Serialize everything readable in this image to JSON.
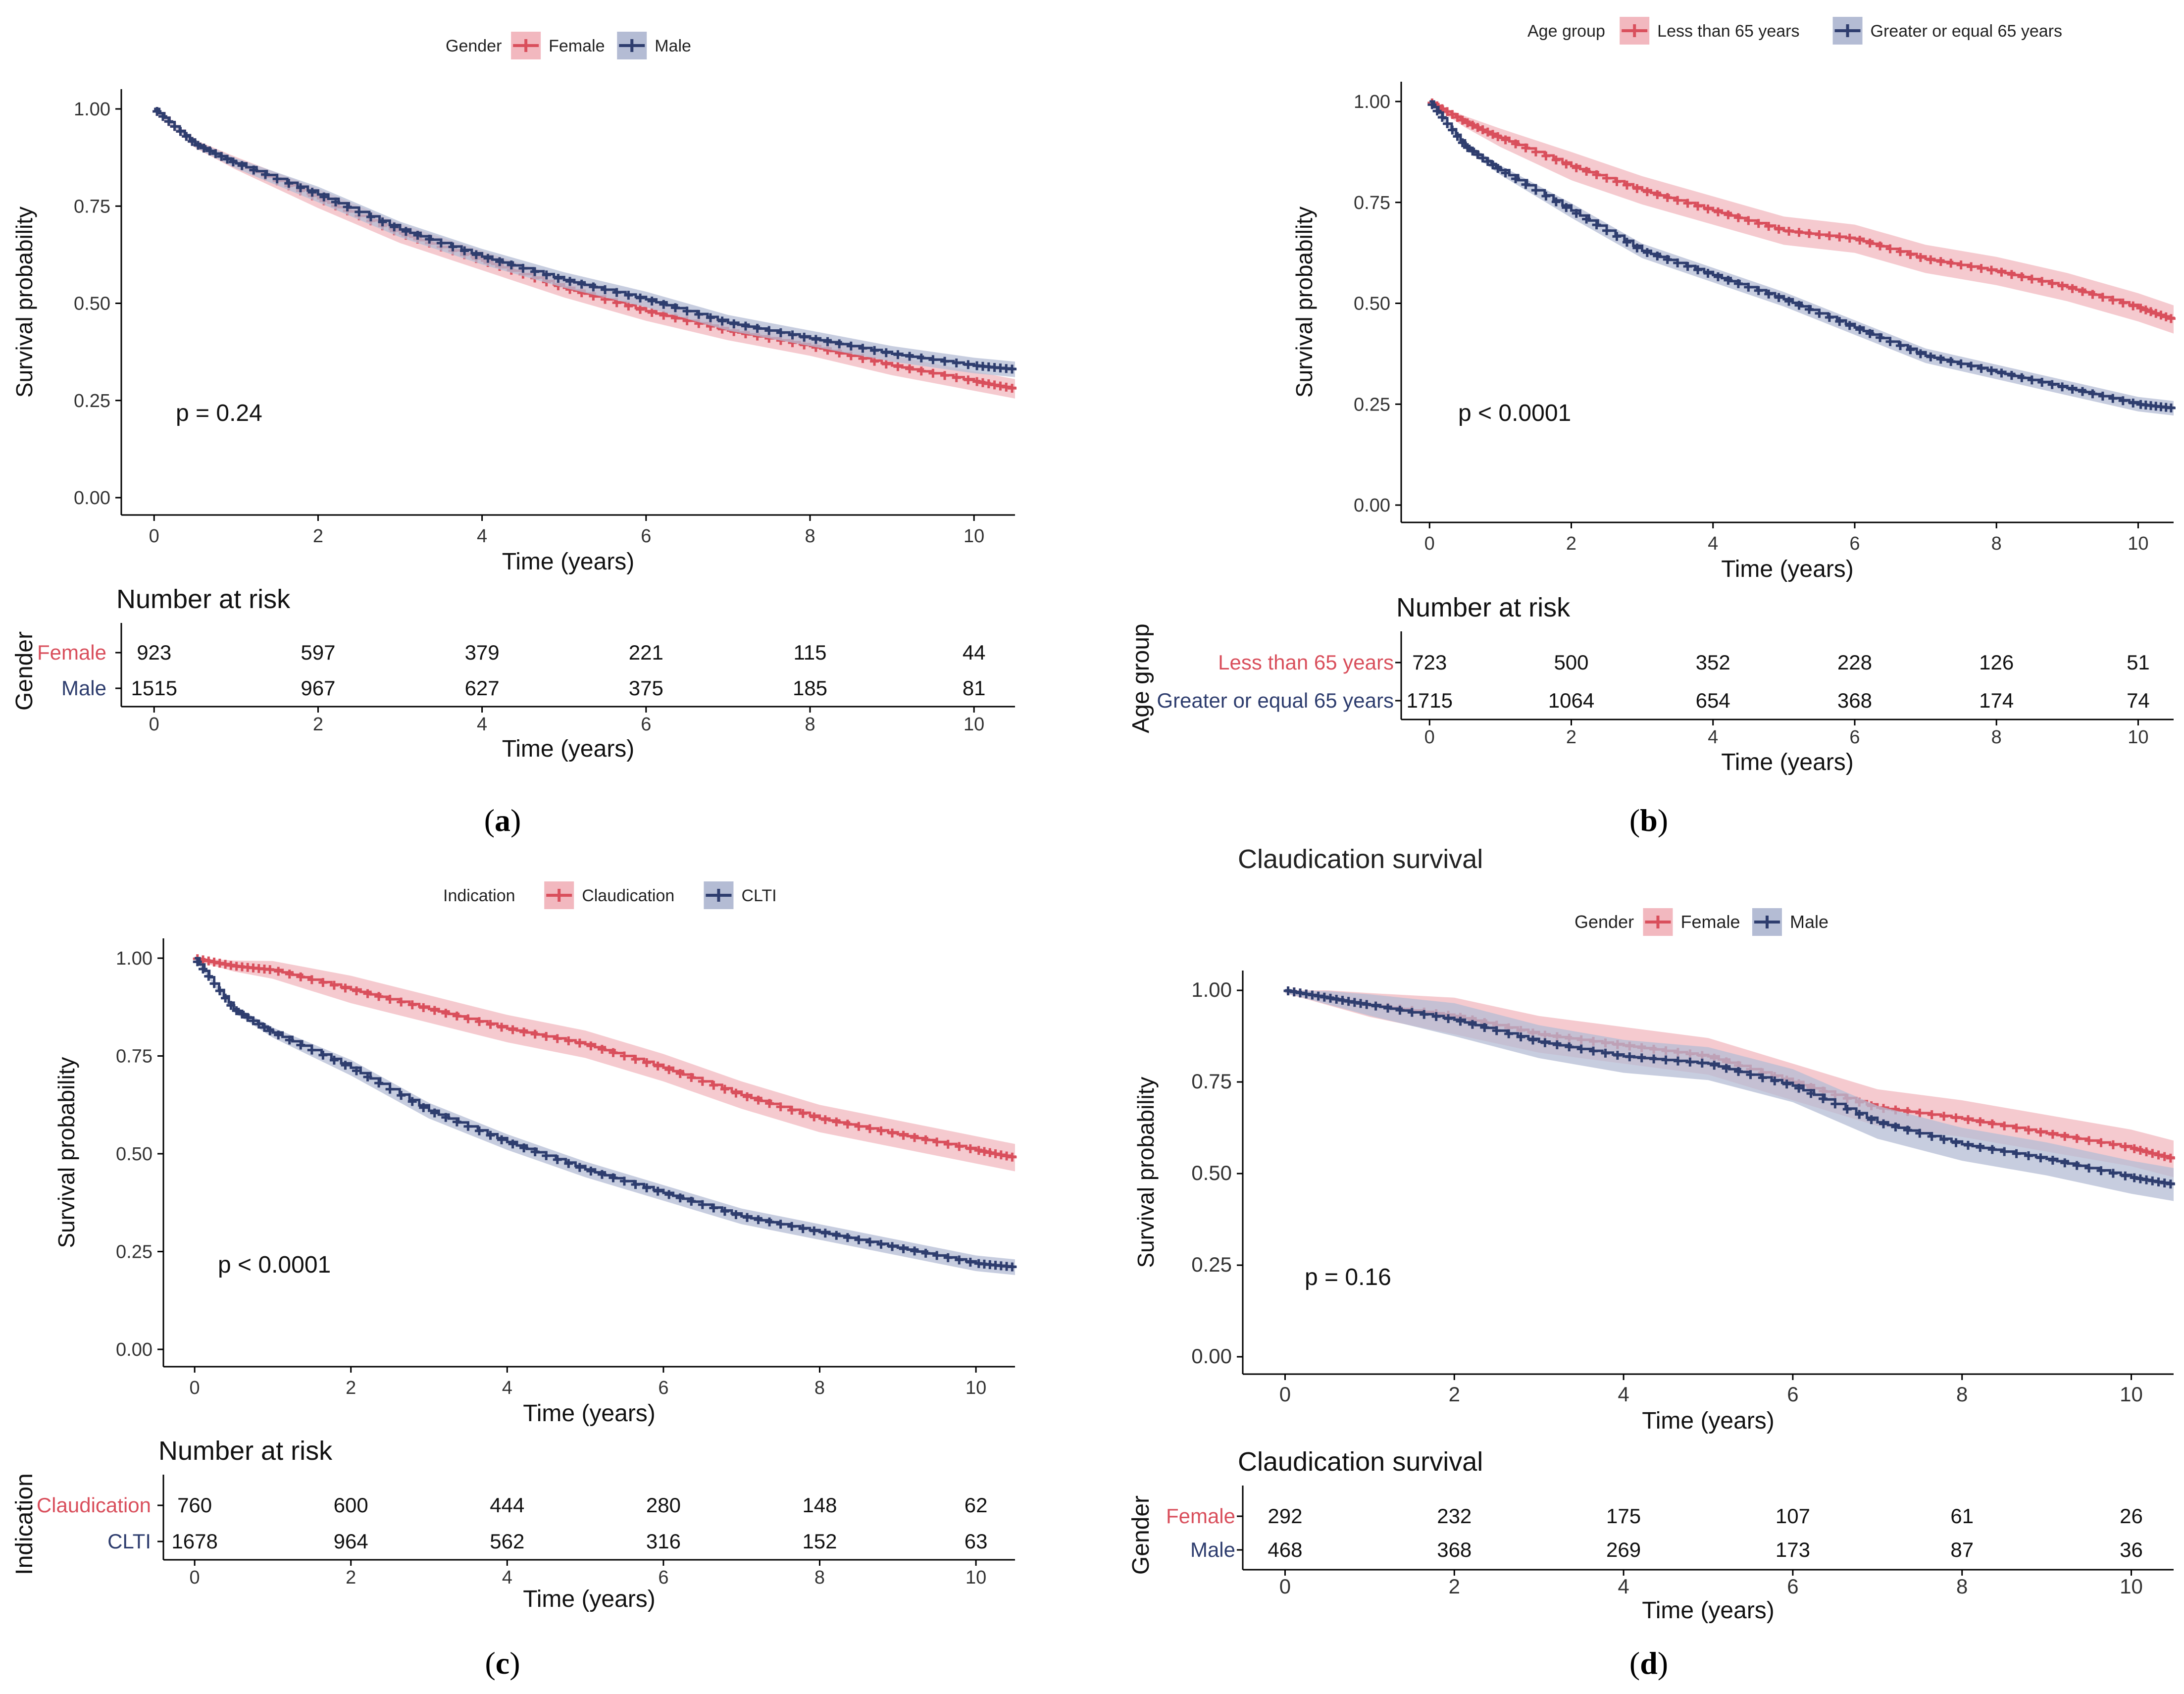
{
  "colors": {
    "female": "#d94f5c",
    "male": "#2e3d6e",
    "female_band": "#f2b8bf",
    "male_band": "#b4bcd4",
    "axis": "#000000",
    "tick_text": "#333333"
  },
  "chart_data": [
    {
      "type": "line",
      "subtype": "kaplan-meier",
      "panel_label": "a",
      "title": "",
      "legend": {
        "title": "Gender",
        "placement": "top"
      },
      "xlabel": "Time (years)",
      "ylabel": "Survival probability",
      "xlim": [
        -0.4,
        10.5
      ],
      "ylim": [
        0,
        1
      ],
      "xticks": [
        "0",
        "2",
        "4",
        "6",
        "8",
        "10"
      ],
      "yticks": [
        "0.00",
        "0.25",
        "0.50",
        "0.75",
        "1.00"
      ],
      "pvalue": "p = 0.24",
      "series": [
        {
          "name": "Female",
          "color_key": "female",
          "x": [
            0,
            0.5,
            1,
            2,
            3,
            4,
            5,
            6,
            7,
            8,
            9,
            10,
            10.5
          ],
          "y": [
            1.0,
            0.91,
            0.86,
            0.77,
            0.68,
            0.61,
            0.54,
            0.48,
            0.43,
            0.39,
            0.34,
            0.3,
            0.28
          ],
          "band": 0.025
        },
        {
          "name": "Male",
          "color_key": "male",
          "x": [
            0,
            0.5,
            1,
            2,
            3,
            4,
            5,
            6,
            7,
            8,
            9,
            10,
            10.5
          ],
          "y": [
            1.0,
            0.91,
            0.86,
            0.78,
            0.69,
            0.62,
            0.56,
            0.51,
            0.45,
            0.41,
            0.37,
            0.34,
            0.33
          ],
          "band": 0.02
        }
      ],
      "risk_table": {
        "title": "Number at risk",
        "strata_title": "Gender",
        "xlabel": "Time (years)",
        "times": [
          0,
          2,
          4,
          6,
          8,
          10
        ],
        "rows": [
          {
            "label": "Female",
            "color_key": "female",
            "values": [
              "923",
              "597",
              "379",
              "221",
              "115",
              "44"
            ]
          },
          {
            "label": "Male",
            "color_key": "male",
            "values": [
              "1515",
              "967",
              "627",
              "375",
              "185",
              "81"
            ]
          }
        ]
      }
    },
    {
      "type": "line",
      "subtype": "kaplan-meier",
      "panel_label": "b",
      "title": "",
      "legend": {
        "title": "Age group",
        "placement": "top"
      },
      "xlabel": "Time (years)",
      "ylabel": "Survival probability",
      "xlim": [
        -0.4,
        10.5
      ],
      "ylim": [
        0,
        1
      ],
      "xticks": [
        "0",
        "2",
        "4",
        "6",
        "8",
        "10"
      ],
      "yticks": [
        "0.00",
        "0.25",
        "0.50",
        "0.75",
        "1.00"
      ],
      "pvalue": "p < 0.0001",
      "series": [
        {
          "name": "Less than 65 years",
          "color_key": "female",
          "x": [
            0,
            0.5,
            1,
            2,
            3,
            4,
            5,
            6,
            7,
            8,
            9,
            10,
            10.5
          ],
          "y": [
            1.0,
            0.95,
            0.91,
            0.84,
            0.78,
            0.73,
            0.68,
            0.66,
            0.61,
            0.58,
            0.54,
            0.49,
            0.46
          ],
          "band": 0.035
        },
        {
          "name": "Greater or equal 65 years",
          "color_key": "male",
          "x": [
            0,
            0.5,
            1,
            2,
            3,
            4,
            5,
            6,
            7,
            8,
            9,
            10,
            10.5
          ],
          "y": [
            1.0,
            0.89,
            0.83,
            0.73,
            0.63,
            0.57,
            0.51,
            0.44,
            0.37,
            0.33,
            0.29,
            0.25,
            0.24
          ],
          "band": 0.018
        }
      ],
      "risk_table": {
        "title": "Number at risk",
        "strata_title": "Age group",
        "xlabel": "Time (years)",
        "times": [
          0,
          2,
          4,
          6,
          8,
          10
        ],
        "rows": [
          {
            "label": "Less than 65 years",
            "color_key": "female",
            "values": [
              "723",
              "500",
              "352",
              "228",
              "126",
              "51"
            ]
          },
          {
            "label": "Greater or equal 65 years",
            "color_key": "male",
            "values": [
              "1715",
              "1064",
              "654",
              "368",
              "174",
              "74"
            ]
          }
        ]
      }
    },
    {
      "type": "line",
      "subtype": "kaplan-meier",
      "panel_label": "c",
      "title": "",
      "legend": {
        "title": "Indication",
        "placement": "top"
      },
      "xlabel": "Time (years)",
      "ylabel": "Survival probability",
      "xlim": [
        -0.4,
        10.5
      ],
      "ylim": [
        0,
        1
      ],
      "xticks": [
        "0",
        "2",
        "4",
        "6",
        "8",
        "10"
      ],
      "yticks": [
        "0.00",
        "0.25",
        "0.50",
        "0.75",
        "1.00"
      ],
      "pvalue": "p < 0.0001",
      "series": [
        {
          "name": "Claudication",
          "color_key": "female",
          "x": [
            0,
            0.5,
            1,
            2,
            3,
            4,
            5,
            6,
            7,
            8,
            9,
            10,
            10.5
          ],
          "y": [
            1.0,
            0.98,
            0.97,
            0.92,
            0.87,
            0.82,
            0.78,
            0.72,
            0.65,
            0.59,
            0.55,
            0.51,
            0.49
          ],
          "band": 0.035
        },
        {
          "name": "CLTI",
          "color_key": "male",
          "x": [
            0,
            0.5,
            1,
            2,
            3,
            4,
            5,
            6,
            7,
            8,
            9,
            10,
            10.5
          ],
          "y": [
            1.0,
            0.87,
            0.81,
            0.72,
            0.61,
            0.53,
            0.46,
            0.4,
            0.34,
            0.3,
            0.26,
            0.22,
            0.21
          ],
          "band": 0.02
        }
      ],
      "risk_table": {
        "title": "Number at risk",
        "strata_title": "Indication",
        "xlabel": "Time (years)",
        "times": [
          0,
          2,
          4,
          6,
          8,
          10
        ],
        "rows": [
          {
            "label": "Claudication",
            "color_key": "female",
            "values": [
              "760",
              "600",
              "444",
              "280",
              "148",
              "62"
            ]
          },
          {
            "label": "CLTI",
            "color_key": "male",
            "values": [
              "1678",
              "964",
              "562",
              "316",
              "152",
              "63"
            ]
          }
        ]
      }
    },
    {
      "type": "line",
      "subtype": "kaplan-meier",
      "panel_label": "d",
      "title": "Claudication survival",
      "legend": {
        "title": "Gender",
        "placement": "top"
      },
      "xlabel": "Time (years)",
      "ylabel": "Survival probability",
      "xlim": [
        -0.5,
        10.5
      ],
      "ylim": [
        0,
        1
      ],
      "xticks": [
        "0",
        "2",
        "4",
        "6",
        "8",
        "10"
      ],
      "yticks": [
        "0.00",
        "0.25",
        "0.50",
        "0.75",
        "1.00"
      ],
      "pvalue": "p = 0.16",
      "series": [
        {
          "name": "Female",
          "color_key": "female",
          "x": [
            0,
            0.5,
            1,
            2,
            3,
            4,
            5,
            6,
            7,
            8,
            9,
            10,
            10.5
          ],
          "y": [
            1.0,
            0.98,
            0.96,
            0.93,
            0.88,
            0.85,
            0.82,
            0.75,
            0.68,
            0.65,
            0.61,
            0.57,
            0.54
          ],
          "band": 0.05
        },
        {
          "name": "Male",
          "color_key": "male",
          "x": [
            0,
            0.5,
            1,
            2,
            3,
            4,
            5,
            6,
            7,
            8,
            9,
            10,
            10.5
          ],
          "y": [
            1.0,
            0.98,
            0.96,
            0.92,
            0.86,
            0.82,
            0.8,
            0.74,
            0.64,
            0.58,
            0.54,
            0.49,
            0.47
          ],
          "band": 0.045
        }
      ],
      "risk_table": {
        "title": "Claudication survival",
        "strata_title": "Gender",
        "xlabel": "Time (years)",
        "times": [
          0,
          2,
          4,
          6,
          8,
          10
        ],
        "rows": [
          {
            "label": "Female",
            "color_key": "female",
            "values": [
              "292",
              "232",
              "175",
              "107",
              "61",
              "26"
            ]
          },
          {
            "label": "Male",
            "color_key": "male",
            "values": [
              "468",
              "368",
              "269",
              "173",
              "87",
              "36"
            ]
          }
        ]
      }
    }
  ]
}
